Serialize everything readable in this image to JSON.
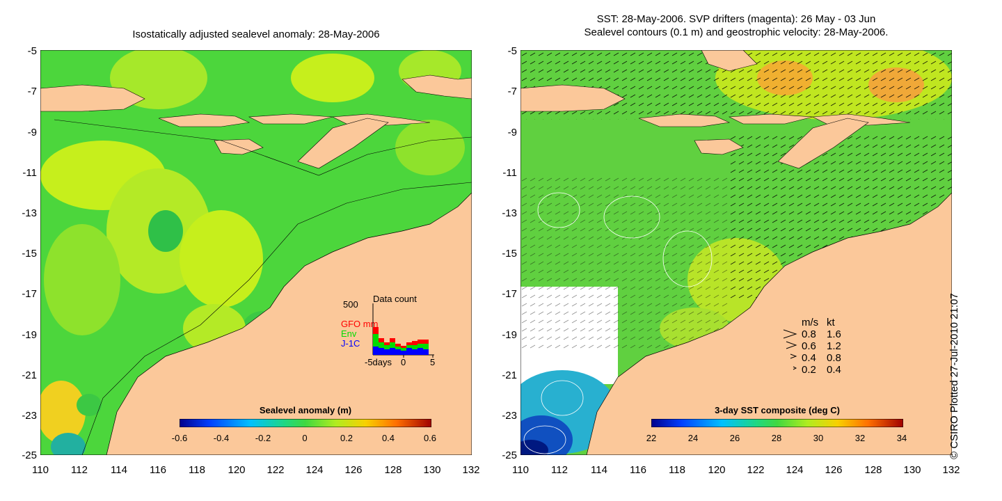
{
  "left_panel": {
    "title": "Isostatically adjusted sealevel anomaly: 28-May-2006",
    "y_ticks": [
      "-5",
      "-7",
      "-9",
      "-11",
      "-13",
      "-15",
      "-17",
      "-19",
      "-21",
      "-23",
      "-25"
    ],
    "x_ticks": [
      "110",
      "112",
      "114",
      "116",
      "118",
      "120",
      "122",
      "124",
      "126",
      "128",
      "130",
      "132"
    ],
    "colorbar": {
      "label": "Sealevel anomaly (m)",
      "ticks": [
        "-0.6",
        "-0.4",
        "-0.2",
        "0",
        "0.2",
        "0.4",
        "0.6"
      ],
      "range": [
        -0.6,
        0.6
      ]
    },
    "inset": {
      "title": "Data count",
      "y_label": "500",
      "series": [
        {
          "name": "GFO mm",
          "color": "#ff0000"
        },
        {
          "name": "Env",
          "color": "#00dd00"
        },
        {
          "name": "J-1C",
          "color": "#0000ff"
        }
      ],
      "x_ticks": [
        "-5days",
        "0",
        "5"
      ]
    }
  },
  "right_panel": {
    "title_line1": "SST: 28-May-2006. SVP drifters (magenta): 26 May - 03 Jun",
    "title_line2": "Sealevel contours (0.1 m) and geostrophic velocity: 28-May-2006.",
    "y_ticks": [
      "-5",
      "-7",
      "-9",
      "-11",
      "-13",
      "-15",
      "-17",
      "-19",
      "-21",
      "-23",
      "-25"
    ],
    "x_ticks": [
      "110",
      "112",
      "114",
      "116",
      "118",
      "120",
      "122",
      "124",
      "126",
      "128",
      "130",
      "132"
    ],
    "colorbar": {
      "label": "3-day SST composite (deg C)",
      "ticks": [
        "22",
        "24",
        "26",
        "28",
        "30",
        "32",
        "34"
      ],
      "range": [
        22,
        34
      ]
    },
    "velocity_legend": {
      "header_ms": "m/s",
      "header_kt": "kt",
      "rows": [
        {
          "ms": "0.8",
          "kt": "1.6"
        },
        {
          "ms": "0.6",
          "kt": "1.2"
        },
        {
          "ms": "0.4",
          "kt": "0.8"
        },
        {
          "ms": "0.2",
          "kt": "0.4"
        }
      ]
    }
  },
  "credit": "© CSIRO Plotted 27-Jul-2010 21:07",
  "colors": {
    "land": "#fbc89a",
    "sea_green": "#4cd63c",
    "sea_yellow": "#c6ef1c",
    "sst_white": "#ffffff"
  }
}
